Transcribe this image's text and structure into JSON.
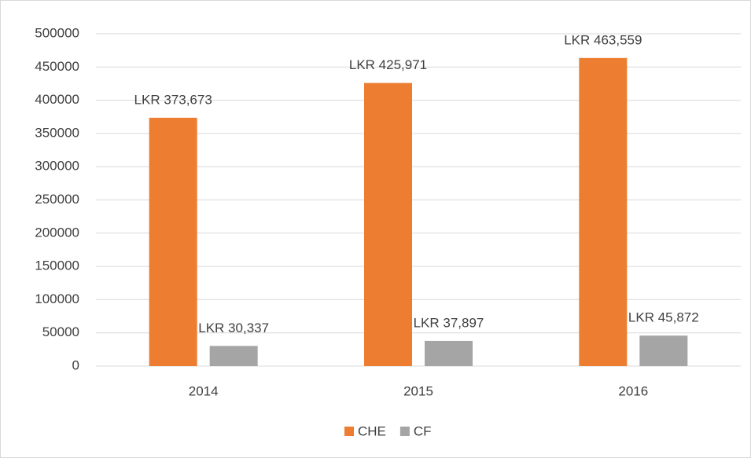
{
  "chart_data": {
    "type": "bar",
    "categories": [
      "2014",
      "2015",
      "2016"
    ],
    "series": [
      {
        "name": "CHE",
        "color": "#ed7d31",
        "values": [
          373673,
          425971,
          463559
        ],
        "value_labels": [
          "LKR 373,673",
          "LKR 425,971",
          "LKR 463,559"
        ]
      },
      {
        "name": "CF",
        "color": "#a5a5a5",
        "values": [
          30337,
          37897,
          45872
        ],
        "value_labels": [
          "LKR 30,337",
          "LKR 37,897",
          "LKR 45,872"
        ]
      }
    ],
    "ylim": [
      0,
      500000
    ],
    "yticks": [
      0,
      50000,
      100000,
      150000,
      200000,
      250000,
      300000,
      350000,
      400000,
      450000,
      500000
    ],
    "grid": true,
    "legend": "bottom"
  }
}
